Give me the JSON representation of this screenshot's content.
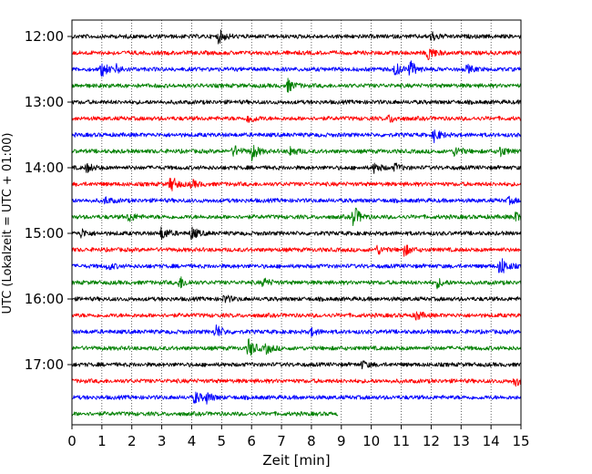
{
  "chart_data": {
    "type": "line",
    "title": "",
    "xlabel": "Zeit  [min]",
    "ylabel": "UTC (Lokalzeit = UTC + 01:00)",
    "xlim": [
      0,
      15
    ],
    "x_ticks": [
      "0",
      "1",
      "2",
      "3",
      "4",
      "5",
      "6",
      "7",
      "8",
      "9",
      "10",
      "11",
      "12",
      "13",
      "14",
      "15"
    ],
    "grid": "vertical dotted",
    "legend": "none",
    "colors": [
      "#000000",
      "#ff0000",
      "#0000ff",
      "#008000"
    ],
    "hour_labels": [
      {
        "label": "12:00",
        "row": 0
      },
      {
        "label": "13:00",
        "row": 4
      },
      {
        "label": "14:00",
        "row": 8
      },
      {
        "label": "15:00",
        "row": 12
      },
      {
        "label": "16:00",
        "row": 16
      },
      {
        "label": "17:00",
        "row": 20
      }
    ],
    "rows": [
      {
        "start": "12:00",
        "end_min": 15,
        "color": "#000000",
        "events": [
          {
            "t": 4.9,
            "a": 1.4
          },
          {
            "t": 12.0,
            "a": 1.0
          }
        ]
      },
      {
        "start": "12:15",
        "end_min": 15,
        "color": "#ff0000",
        "events": [
          {
            "t": 11.9,
            "a": 1.6
          }
        ]
      },
      {
        "start": "12:30",
        "end_min": 15,
        "color": "#0000ff",
        "events": [
          {
            "t": 1.0,
            "a": 1.5
          },
          {
            "t": 1.5,
            "a": 0.8
          },
          {
            "t": 10.8,
            "a": 1.3
          },
          {
            "t": 11.3,
            "a": 1.6
          },
          {
            "t": 13.2,
            "a": 0.8
          }
        ]
      },
      {
        "start": "12:45",
        "end_min": 15,
        "color": "#008000",
        "events": [
          {
            "t": 7.2,
            "a": 1.3
          }
        ]
      },
      {
        "start": "13:00",
        "end_min": 15,
        "color": "#000000",
        "events": []
      },
      {
        "start": "13:15",
        "end_min": 15,
        "color": "#ff0000",
        "events": [
          {
            "t": 5.9,
            "a": 1.0
          },
          {
            "t": 10.6,
            "a": 0.8
          }
        ]
      },
      {
        "start": "13:30",
        "end_min": 15,
        "color": "#0000ff",
        "events": [
          {
            "t": 12.1,
            "a": 1.3
          }
        ]
      },
      {
        "start": "13:45",
        "end_min": 15,
        "color": "#008000",
        "events": [
          {
            "t": 5.4,
            "a": 1.2
          },
          {
            "t": 6.0,
            "a": 1.8
          },
          {
            "t": 7.3,
            "a": 1.0
          },
          {
            "t": 12.8,
            "a": 1.1
          },
          {
            "t": 14.3,
            "a": 1.0
          }
        ]
      },
      {
        "start": "14:00",
        "end_min": 15,
        "color": "#000000",
        "events": [
          {
            "t": 0.5,
            "a": 0.9
          },
          {
            "t": 10.1,
            "a": 1.0
          },
          {
            "t": 10.8,
            "a": 0.8
          }
        ]
      },
      {
        "start": "14:15",
        "end_min": 15,
        "color": "#ff0000",
        "events": [
          {
            "t": 3.3,
            "a": 1.7
          },
          {
            "t": 4.0,
            "a": 0.8
          }
        ]
      },
      {
        "start": "14:30",
        "end_min": 15,
        "color": "#0000ff",
        "events": [
          {
            "t": 1.1,
            "a": 0.7
          },
          {
            "t": 14.6,
            "a": 0.6
          }
        ]
      },
      {
        "start": "14:45",
        "end_min": 15,
        "color": "#008000",
        "events": [
          {
            "t": 1.9,
            "a": 1.0
          },
          {
            "t": 9.4,
            "a": 2.4
          },
          {
            "t": 14.8,
            "a": 1.0
          }
        ]
      },
      {
        "start": "15:00",
        "end_min": 15,
        "color": "#000000",
        "events": [
          {
            "t": 0.3,
            "a": 0.9
          },
          {
            "t": 3.0,
            "a": 1.4
          },
          {
            "t": 4.0,
            "a": 1.3
          }
        ]
      },
      {
        "start": "15:15",
        "end_min": 15,
        "color": "#ff0000",
        "events": [
          {
            "t": 10.2,
            "a": 0.9
          },
          {
            "t": 11.1,
            "a": 1.2
          }
        ]
      },
      {
        "start": "15:30",
        "end_min": 15,
        "color": "#0000ff",
        "events": [
          {
            "t": 1.2,
            "a": 0.7
          },
          {
            "t": 14.3,
            "a": 2.3
          }
        ]
      },
      {
        "start": "15:45",
        "end_min": 15,
        "color": "#008000",
        "events": [
          {
            "t": 3.6,
            "a": 1.3
          },
          {
            "t": 6.4,
            "a": 0.9
          },
          {
            "t": 12.2,
            "a": 0.9
          }
        ]
      },
      {
        "start": "16:00",
        "end_min": 15,
        "color": "#000000",
        "events": [
          {
            "t": 5.1,
            "a": 0.8
          }
        ]
      },
      {
        "start": "16:15",
        "end_min": 15,
        "color": "#ff0000",
        "events": [
          {
            "t": 11.5,
            "a": 0.9
          }
        ]
      },
      {
        "start": "16:30",
        "end_min": 15,
        "color": "#0000ff",
        "events": [
          {
            "t": 4.8,
            "a": 1.5
          },
          {
            "t": 8.0,
            "a": 0.7
          }
        ]
      },
      {
        "start": "16:45",
        "end_min": 15,
        "color": "#008000",
        "events": [
          {
            "t": 5.9,
            "a": 2.0
          },
          {
            "t": 6.5,
            "a": 1.0
          }
        ]
      },
      {
        "start": "17:00",
        "end_min": 15,
        "color": "#000000",
        "events": [
          {
            "t": 9.7,
            "a": 0.7
          }
        ]
      },
      {
        "start": "17:15",
        "end_min": 15,
        "color": "#ff0000",
        "events": [
          {
            "t": 14.8,
            "a": 1.0
          }
        ]
      },
      {
        "start": "17:30",
        "end_min": 15,
        "color": "#0000ff",
        "events": [
          {
            "t": 4.1,
            "a": 1.3
          },
          {
            "t": 4.5,
            "a": 1.0
          }
        ]
      },
      {
        "start": "17:45",
        "end_min": 8.9,
        "color": "#008000",
        "events": []
      }
    ]
  }
}
